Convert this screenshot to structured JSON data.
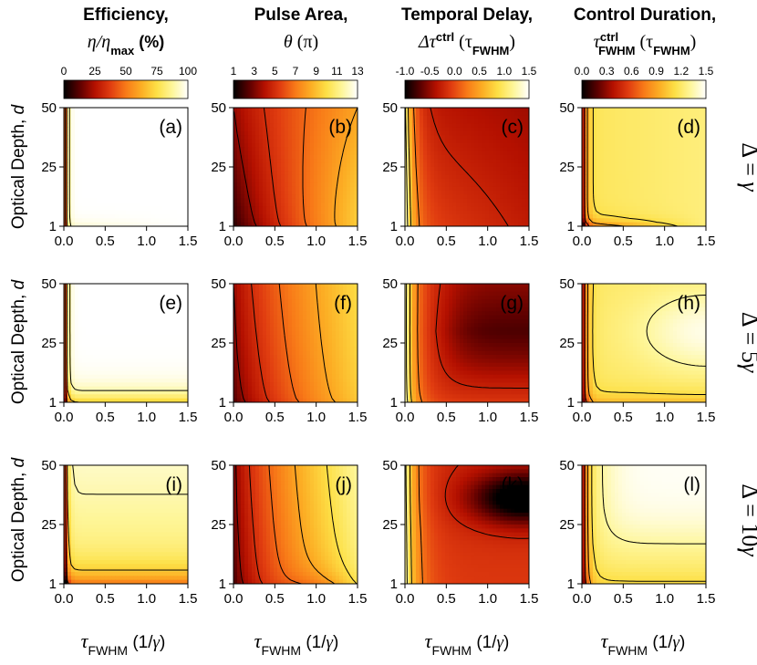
{
  "colors": {
    "scale": [
      "#000000",
      "#5a0000",
      "#b41000",
      "#e03c10",
      "#f87a18",
      "#fcae24",
      "#fde046",
      "#fef69a",
      "#ffffff"
    ],
    "contour_line": "#000000"
  },
  "columns": [
    {
      "title_line1": "Efficiency,",
      "title_line2_main": "η/η",
      "title_line2_sub": "max",
      "title_line2_tail": " (%)",
      "colorbar_ticks": [
        "0",
        "25",
        "50",
        "75",
        "100"
      ]
    },
    {
      "title_line1": "Pulse Area,",
      "title_line2_main": "θ",
      "title_line2_sub": "",
      "title_line2_tail": " (π)",
      "colorbar_ticks": [
        "1",
        "3",
        "5",
        "7",
        "9",
        "11",
        "13"
      ]
    },
    {
      "title_line1": "Temporal Delay,",
      "title_line2_main": "Δτ",
      "title_line2_sup": "ctrl",
      "title_line2_tail": " (τ",
      "title_line2_sub2": "FWHM",
      "title_line2_end": ")",
      "colorbar_ticks": [
        "-1.0",
        "-0.5",
        "0.0",
        "0.5",
        "1.0",
        "1.5"
      ]
    },
    {
      "title_line1": "Control Duration,",
      "title_line2_main": "τ",
      "title_line2_sup": "ctrl",
      "title_line2_sub": "FWHM",
      "title_line2_tail": " (τ",
      "title_line2_sub2": "FWHM",
      "title_line2_end": ")",
      "colorbar_ticks": [
        "0.0",
        "0.3",
        "0.6",
        "0.9",
        "1.2",
        "1.5"
      ]
    }
  ],
  "rows": [
    {
      "label_main": "Δ = ",
      "label_sym": "γ"
    },
    {
      "label_main": "Δ = 5",
      "label_sym": "γ"
    },
    {
      "label_main": "Δ = 10",
      "label_sym": "γ"
    }
  ],
  "panel_letters": [
    "(a)",
    "(b)",
    "(c)",
    "(d)",
    "(e)",
    "(f)",
    "(g)",
    "(h)",
    "(i)",
    "(j)",
    "(k)",
    "(l)"
  ],
  "y_axis_label": "Optical Depth, ",
  "y_axis_label_sym": "d",
  "x_axis_label_main": "τ",
  "x_axis_label_sub": "FWHM",
  "x_axis_label_tail": " (1/",
  "x_axis_label_sym": "γ",
  "x_axis_label_end": ")",
  "chart_data": {
    "type": "heatmap",
    "x": {
      "ticks": [
        "0.0",
        "0.5",
        "1.0",
        "1.5"
      ],
      "range": [
        0,
        1.5
      ]
    },
    "y": {
      "ticks": [
        "1",
        "25",
        "50"
      ],
      "range": [
        1,
        50
      ]
    },
    "panels": [
      {
        "id": "a",
        "field": "efficiency",
        "row": 0,
        "col": 0
      },
      {
        "id": "b",
        "field": "pulse_area",
        "row": 0,
        "col": 1
      },
      {
        "id": "c",
        "field": "delay",
        "row": 0,
        "col": 2
      },
      {
        "id": "d",
        "field": "duration",
        "row": 0,
        "col": 3
      },
      {
        "id": "e",
        "field": "efficiency",
        "row": 1,
        "col": 0
      },
      {
        "id": "f",
        "field": "pulse_area",
        "row": 1,
        "col": 1
      },
      {
        "id": "g",
        "field": "delay",
        "row": 1,
        "col": 2
      },
      {
        "id": "h",
        "field": "duration",
        "row": 1,
        "col": 3
      },
      {
        "id": "i",
        "field": "efficiency",
        "row": 2,
        "col": 0
      },
      {
        "id": "j",
        "field": "pulse_area",
        "row": 2,
        "col": 1
      },
      {
        "id": "k",
        "field": "delay",
        "row": 2,
        "col": 2
      },
      {
        "id": "l",
        "field": "duration",
        "row": 2,
        "col": 3
      }
    ]
  }
}
